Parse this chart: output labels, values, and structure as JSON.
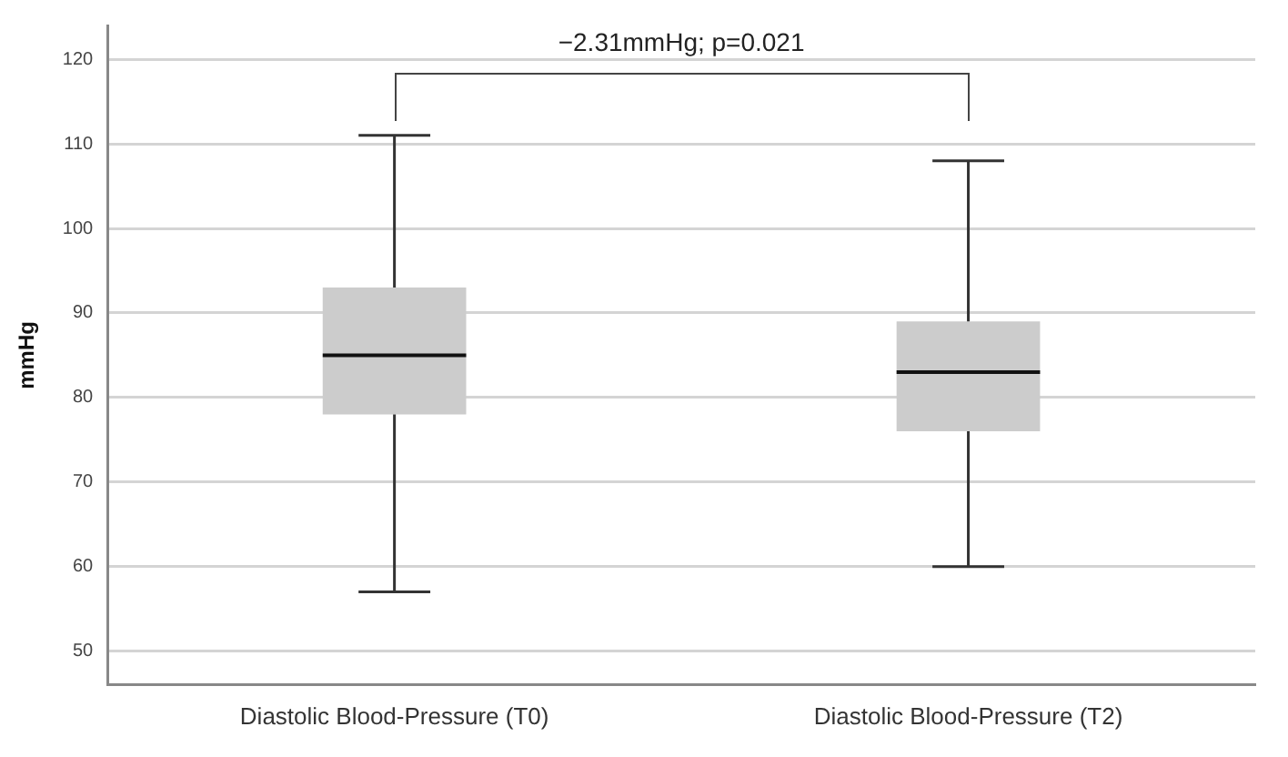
{
  "chart_data": {
    "type": "box",
    "categories": [
      "Diastolic Blood-Pressure (T0)",
      "Diastolic Blood-Pressure (T2)"
    ],
    "boxes": [
      {
        "low": 57,
        "q1": 78,
        "median": 85,
        "q3": 93,
        "high": 111
      },
      {
        "low": 60,
        "q1": 76,
        "median": 83,
        "q3": 89,
        "high": 108
      }
    ],
    "color": "#cccccc",
    "ylabel": "mmHg",
    "ylim": [
      46,
      124
    ],
    "yticks": [
      50,
      60,
      70,
      80,
      90,
      100,
      110,
      120
    ],
    "grid": "y",
    "annotations": [
      "−2.31mmHg; p=0.021"
    ]
  }
}
